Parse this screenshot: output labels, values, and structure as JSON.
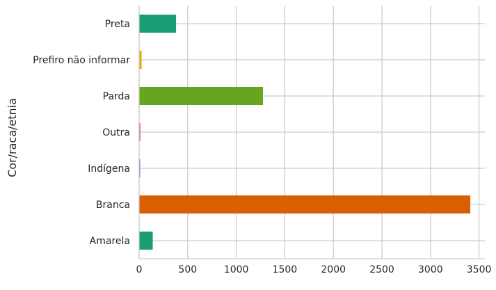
{
  "chart_data": {
    "type": "bar",
    "orientation": "horizontal",
    "title": "",
    "xlabel": "",
    "ylabel": "Cor/raca/etnia",
    "xlim": [
      0,
      3560
    ],
    "grid": true,
    "categories": [
      "Amarela",
      "Branca",
      "Indígena",
      "Outra",
      "Parda",
      "Prefiro não informar",
      "Preta"
    ],
    "values": [
      140,
      3410,
      5,
      12,
      1275,
      25,
      380
    ],
    "colors": [
      "#1b9e77",
      "#d95f02",
      "#7570b3",
      "#e7298a",
      "#66a61e",
      "#e6ab02",
      "#1b9e77"
    ],
    "xticks": [
      0,
      500,
      1000,
      1500,
      2000,
      2500,
      3000,
      3500
    ],
    "xtick_labels": [
      "0",
      "500",
      "1000",
      "1500",
      "2000",
      "2500",
      "3000",
      "3500"
    ]
  }
}
